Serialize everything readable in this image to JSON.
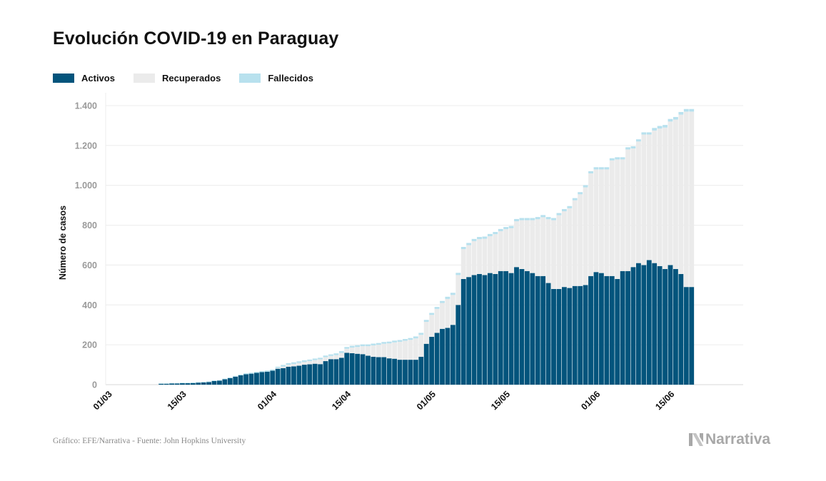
{
  "title": "Evolución COVID-19 en Paraguay",
  "legend": [
    {
      "label": "Activos",
      "color": "#03547c"
    },
    {
      "label": "Recuperados",
      "color": "#ebebeb"
    },
    {
      "label": "Fallecidos",
      "color": "#b8e1ee"
    }
  ],
  "source": "Gráfico: EFE/Narrativa - Fuente: John Hopkins University",
  "brand": "Narrativa",
  "brand_icon": "narrativa-logo-icon",
  "chart_data": {
    "type": "bar",
    "stacked": true,
    "title": "Evolución COVID-19 en Paraguay",
    "ylabel": "Número de casos",
    "xlabel": "",
    "ylim": [
      0,
      1400
    ],
    "yticks": [
      0,
      200,
      400,
      600,
      800,
      1000,
      1200,
      1400
    ],
    "ytick_labels": [
      "0",
      "200",
      "400",
      "600",
      "800",
      "1.000",
      "1.200",
      "1.400"
    ],
    "grid": true,
    "legend_position": "top-left",
    "date_start": "2020-03-01",
    "x_ticks": [
      {
        "label": "01/03",
        "day": 0
      },
      {
        "label": "15/03",
        "day": 14
      },
      {
        "label": "01/04",
        "day": 31
      },
      {
        "label": "15/04",
        "day": 45
      },
      {
        "label": "01/05",
        "day": 61
      },
      {
        "label": "15/05",
        "day": 75
      },
      {
        "label": "01/06",
        "day": 92
      },
      {
        "label": "15/06",
        "day": 106
      }
    ],
    "series": [
      {
        "name": "Activos",
        "color": "#03547c",
        "values": [
          0,
          0,
          0,
          0,
          0,
          0,
          0,
          0,
          0,
          0,
          5,
          5,
          6,
          6,
          7,
          7,
          8,
          10,
          11,
          13,
          18,
          20,
          27,
          33,
          40,
          47,
          52,
          55,
          59,
          63,
          65,
          70,
          80,
          83,
          90,
          92,
          95,
          100,
          102,
          105,
          103,
          118,
          128,
          128,
          135,
          160,
          158,
          155,
          153,
          145,
          140,
          138,
          138,
          132,
          130,
          125,
          125,
          125,
          125,
          140,
          205,
          240,
          260,
          280,
          285,
          300,
          400,
          530,
          540,
          550,
          555,
          550,
          560,
          555,
          570,
          570,
          560,
          590,
          580,
          570,
          560,
          545,
          545,
          510,
          480,
          480,
          490,
          485,
          495,
          495,
          500,
          545,
          565,
          560,
          545,
          545,
          530,
          570,
          570,
          590,
          610,
          600,
          625,
          610,
          595,
          580,
          600,
          580,
          555,
          490,
          490
        ]
      },
      {
        "name": "Recuperados",
        "color": "#ebebeb",
        "values": [
          0,
          0,
          0,
          0,
          0,
          0,
          0,
          0,
          0,
          0,
          0,
          0,
          0,
          0,
          0,
          0,
          0,
          0,
          0,
          0,
          0,
          0,
          0,
          0,
          0,
          0,
          0,
          0,
          0,
          0,
          0,
          0,
          4,
          8,
          10,
          12,
          14,
          14,
          16,
          18,
          24,
          20,
          16,
          20,
          24,
          20,
          28,
          34,
          40,
          48,
          57,
          62,
          67,
          75,
          82,
          90,
          95,
          100,
          107,
          110,
          110,
          110,
          120,
          130,
          145,
          150,
          150,
          150,
          160,
          170,
          175,
          182,
          185,
          200,
          200,
          210,
          225,
          230,
          245,
          255,
          265,
          285,
          295,
          320,
          345,
          370,
          380,
          400,
          430,
          460,
          490,
          515,
          515,
          520,
          535,
          580,
          600,
          560,
          610,
          595,
          610,
          655,
          630,
          665,
          690,
          710,
          720,
          750,
          800,
          880,
          880
        ]
      },
      {
        "name": "Fallecidos",
        "color": "#b8e1ee",
        "values": [
          0,
          0,
          0,
          0,
          0,
          0,
          0,
          0,
          0,
          0,
          1,
          1,
          2,
          2,
          3,
          3,
          3,
          3,
          3,
          3,
          3,
          3,
          3,
          3,
          4,
          4,
          5,
          5,
          5,
          5,
          6,
          6,
          6,
          8,
          8,
          8,
          8,
          8,
          8,
          8,
          8,
          8,
          8,
          9,
          9,
          9,
          9,
          9,
          9,
          9,
          9,
          9,
          9,
          9,
          9,
          9,
          9,
          9,
          10,
          10,
          10,
          10,
          10,
          10,
          11,
          11,
          11,
          11,
          11,
          11,
          11,
          11,
          11,
          11,
          11,
          11,
          11,
          11,
          11,
          11,
          11,
          11,
          11,
          11,
          11,
          11,
          11,
          11,
          11,
          11,
          11,
          11,
          11,
          11,
          11,
          11,
          11,
          11,
          11,
          11,
          11,
          11,
          11,
          13,
          13,
          13,
          13,
          13,
          13,
          13,
          13
        ]
      }
    ]
  }
}
